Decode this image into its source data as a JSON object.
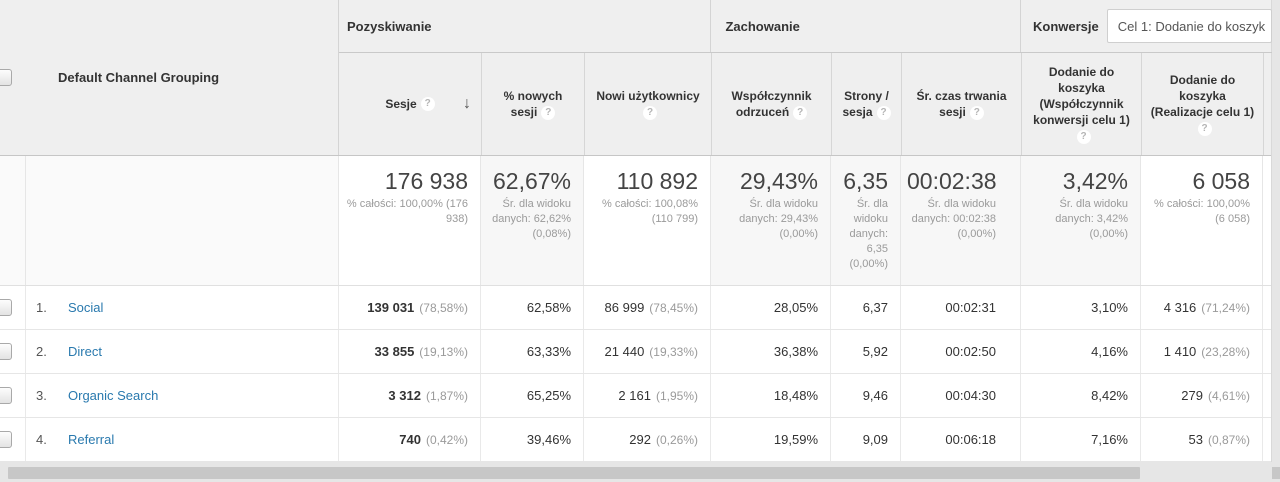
{
  "dimension_header": "Default Channel Grouping",
  "groups": {
    "acquisition": "Pozyskiwanie",
    "behavior": "Zachowanie",
    "conversions": "Konwersje"
  },
  "goal_selector_value": "Cel 1: Dodanie do koszyk",
  "columns": {
    "sessions": "Sesje",
    "pct_new_sessions": "% nowych sesji",
    "new_users": "Nowi użytkownicy",
    "bounce_rate": "Współczynnik odrzuceń",
    "pages_per_session": "Strony / sesja",
    "avg_duration": "Śr. czas trwania sesji",
    "goal_conv_rate": "Dodanie do koszyka (Współczynnik konwersji celu 1)",
    "goal_completions": "Dodanie do koszyka (Realizacje celu 1)"
  },
  "icons": {
    "help": "?",
    "sort_desc": "↓"
  },
  "totals": {
    "sessions": {
      "value": "176 938",
      "sub": "% całości: 100,00% (176 938)"
    },
    "pct_new_sessions": {
      "value": "62,67%",
      "sub": "Śr. dla widoku danych: 62,62% (0,08%)"
    },
    "new_users": {
      "value": "110 892",
      "sub": "% całości: 100,08% (110 799)"
    },
    "bounce_rate": {
      "value": "29,43%",
      "sub": "Śr. dla widoku danych: 29,43% (0,00%)"
    },
    "pages_per_session": {
      "value": "6,35",
      "sub": "Śr. dla widoku danych: 6,35 (0,00%)"
    },
    "avg_duration": {
      "value": "00:02:38",
      "sub": "Śr. dla widoku danych: 00:02:38 (0,00%)"
    },
    "goal_conv_rate": {
      "value": "3,42%",
      "sub": "Śr. dla widoku danych: 3,42% (0,00%)"
    },
    "goal_completions": {
      "value": "6 058",
      "sub": "% całości: 100,00% (6 058)"
    }
  },
  "rows": [
    {
      "num": "1.",
      "channel": "Social",
      "sessions": "139 031",
      "sessions_share": "(78,58%)",
      "pct_new_sessions": "62,58%",
      "new_users": "86 999",
      "new_users_share": "(78,45%)",
      "bounce_rate": "28,05%",
      "pages_per_session": "6,37",
      "avg_duration": "00:02:31",
      "goal_conv_rate": "3,10%",
      "goal_completions": "4 316",
      "goal_completions_share": "(71,24%)"
    },
    {
      "num": "2.",
      "channel": "Direct",
      "sessions": "33 855",
      "sessions_share": "(19,13%)",
      "pct_new_sessions": "63,33%",
      "new_users": "21 440",
      "new_users_share": "(19,33%)",
      "bounce_rate": "36,38%",
      "pages_per_session": "5,92",
      "avg_duration": "00:02:50",
      "goal_conv_rate": "4,16%",
      "goal_completions": "1 410",
      "goal_completions_share": "(23,28%)"
    },
    {
      "num": "3.",
      "channel": "Organic Search",
      "sessions": "3 312",
      "sessions_share": "(1,87%)",
      "pct_new_sessions": "65,25%",
      "new_users": "2 161",
      "new_users_share": "(1,95%)",
      "bounce_rate": "18,48%",
      "pages_per_session": "9,46",
      "avg_duration": "00:04:30",
      "goal_conv_rate": "8,42%",
      "goal_completions": "279",
      "goal_completions_share": "(4,61%)"
    },
    {
      "num": "4.",
      "channel": "Referral",
      "sessions": "740",
      "sessions_share": "(0,42%)",
      "pct_new_sessions": "39,46%",
      "new_users": "292",
      "new_users_share": "(0,26%)",
      "bounce_rate": "19,59%",
      "pages_per_session": "9,09",
      "avg_duration": "00:06:18",
      "goal_conv_rate": "7,16%",
      "goal_completions": "53",
      "goal_completions_share": "(0,87%)"
    }
  ],
  "colors": {
    "link_blue": "#2979ae",
    "header_bg": "#efefef",
    "avg_cell_bg": "#f7f7f7",
    "scrollbar_thumb": "#c7c7c7",
    "page_bg": "#e6e6e6"
  }
}
